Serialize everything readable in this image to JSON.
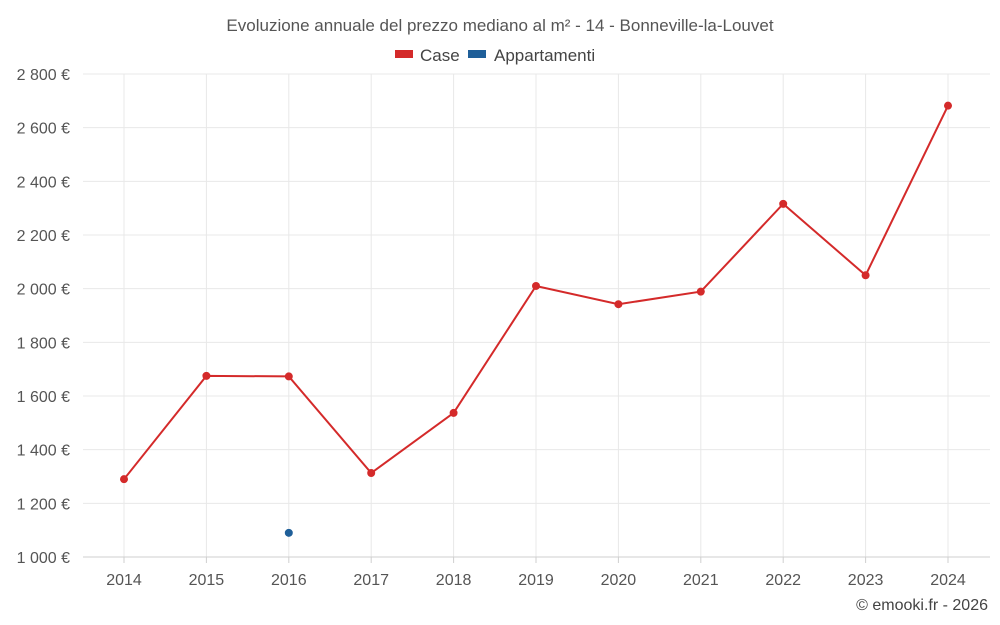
{
  "chart_data": {
    "type": "line",
    "title": "Evoluzione annuale del prezzo mediano al m² - 14 - Bonneville-la-Louvet",
    "xlabel": "",
    "ylabel": "",
    "categories": [
      "2014",
      "2015",
      "2016",
      "2017",
      "2018",
      "2019",
      "2020",
      "2021",
      "2022",
      "2023",
      "2024"
    ],
    "ylim": [
      1000,
      2800
    ],
    "yticks": [
      1000,
      1200,
      1400,
      1600,
      1800,
      2000,
      2200,
      2400,
      2600,
      2800
    ],
    "ytick_labels": [
      "1 000 €",
      "1 200 €",
      "1 400 €",
      "1 600 €",
      "1 800 €",
      "2 000 €",
      "2 200 €",
      "2 400 €",
      "2 600 €",
      "2 800 €"
    ],
    "grid": true,
    "legend_position": "top-center",
    "series": [
      {
        "name": "Case",
        "color": "#d42a2a",
        "values": [
          1290,
          1675,
          1673,
          1313,
          1537,
          2010,
          1942,
          1989,
          2316,
          2050,
          2682
        ]
      },
      {
        "name": "Appartamenti",
        "color": "#1f5f99",
        "values": [
          null,
          null,
          1090,
          null,
          null,
          null,
          null,
          null,
          null,
          null,
          null
        ]
      }
    ]
  },
  "footer": {
    "credit": "© emooki.fr - 2026"
  }
}
